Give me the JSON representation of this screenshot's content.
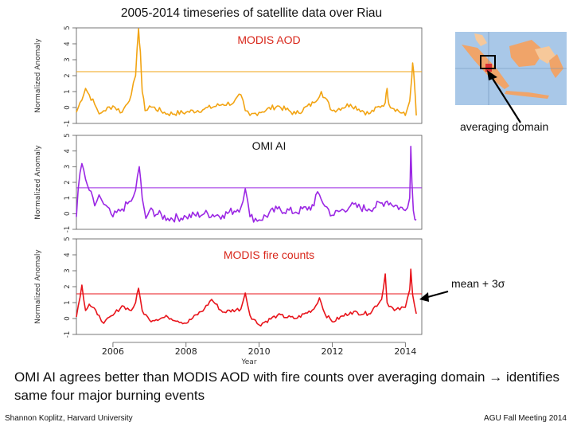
{
  "title": "2005-2014 timeseries of satellite data over Riau",
  "summary": "OMI AI agrees better than MODIS AOD with fire counts over averaging domain → identifies same four major burning events",
  "footer_left": "Shannon Koplitz, Harvard University",
  "footer_right": "AGU Fall Meeting 2014",
  "map_label": "averaging domain",
  "threshold_label": "mean + 3σ",
  "colors": {
    "aod": "#f2a413",
    "ai": "#9b27e4",
    "fire": "#e8141b",
    "aod_label": "#d8261a",
    "ai_label": "#111111",
    "fire_label": "#d8261a",
    "map_sea": "#a9c8e8",
    "map_land": "#f0a469",
    "map_highlight": "#d81b2a"
  },
  "chart_data": [
    {
      "type": "line",
      "series_name": "MODIS AOD",
      "ylabel": "Normalized Anomaly",
      "xlabel": "",
      "ylim": [
        -1,
        5
      ],
      "yticks": [
        "-1",
        "0",
        "1",
        "2",
        "3",
        "4",
        "5"
      ],
      "threshold": 2.25,
      "x": [
        2005.0,
        2005.25,
        2005.5,
        2005.62,
        2005.75,
        2006.0,
        2006.25,
        2006.5,
        2006.62,
        2006.7,
        2006.75,
        2006.8,
        2006.88,
        2007.0,
        2007.5,
        2008.0,
        2008.5,
        2009.0,
        2009.3,
        2009.5,
        2009.62,
        2009.75,
        2010.0,
        2010.5,
        2011.0,
        2011.5,
        2011.7,
        2012.0,
        2012.5,
        2013.0,
        2013.45,
        2013.5,
        2013.55,
        2014.0,
        2014.12,
        2014.15,
        2014.2,
        2014.25,
        2014.3
      ],
      "values": [
        -0.3,
        1.2,
        0.2,
        -0.4,
        -0.2,
        0.1,
        -0.3,
        0.8,
        2.0,
        4.95,
        3.5,
        1.0,
        -0.2,
        0.1,
        -0.4,
        -0.3,
        -0.1,
        0.2,
        0.3,
        0.8,
        -0.2,
        -0.5,
        -0.3,
        0.1,
        -0.4,
        0.3,
        1.0,
        -0.2,
        0.2,
        -0.4,
        0.3,
        1.2,
        0.2,
        -0.5,
        0.4,
        1.2,
        2.8,
        1.5,
        -0.5
      ]
    },
    {
      "type": "line",
      "series_name": "OMI AI",
      "ylabel": "Normalized Anomaly",
      "xlabel": "",
      "ylim": [
        -1,
        5
      ],
      "yticks": [
        "-1",
        "0",
        "1",
        "2",
        "3",
        "4",
        "5"
      ],
      "threshold": 1.65,
      "x": [
        2005.0,
        2005.05,
        2005.15,
        2005.25,
        2005.35,
        2005.5,
        2005.62,
        2005.75,
        2006.0,
        2006.25,
        2006.5,
        2006.62,
        2006.72,
        2006.8,
        2006.9,
        2007.0,
        2007.5,
        2008.0,
        2008.5,
        2009.0,
        2009.5,
        2009.62,
        2009.75,
        2010.0,
        2010.5,
        2011.0,
        2011.5,
        2011.6,
        2011.7,
        2012.0,
        2012.5,
        2013.0,
        2013.5,
        2014.0,
        2014.12,
        2014.15,
        2014.18,
        2014.22,
        2014.3
      ],
      "values": [
        -0.2,
        1.6,
        3.2,
        2.2,
        1.5,
        0.5,
        1.2,
        0.6,
        -0.2,
        0.3,
        0.8,
        1.5,
        3.0,
        1.0,
        -0.3,
        0.2,
        -0.3,
        -0.2,
        0.0,
        -0.1,
        0.4,
        1.6,
        -0.2,
        -0.4,
        0.3,
        0.1,
        0.5,
        1.4,
        0.9,
        -0.1,
        0.5,
        0.3,
        0.8,
        0.2,
        1.0,
        4.3,
        2.0,
        0.2,
        -0.4
      ]
    },
    {
      "type": "line",
      "series_name": "MODIS fire counts",
      "ylabel": "Normalized Anomaly",
      "xlabel": "Year",
      "ylim": [
        -1,
        5
      ],
      "yticks": [
        "-1",
        "0",
        "1",
        "2",
        "3",
        "4",
        "5"
      ],
      "xticks": [
        "2006",
        "2008",
        "2010",
        "2012",
        "2014"
      ],
      "threshold": 1.55,
      "x": [
        2005.0,
        2005.15,
        2005.25,
        2005.35,
        2005.62,
        2005.75,
        2006.0,
        2006.25,
        2006.5,
        2006.62,
        2006.7,
        2006.8,
        2007.0,
        2007.5,
        2008.0,
        2008.5,
        2008.7,
        2009.0,
        2009.5,
        2009.62,
        2009.75,
        2010.0,
        2010.5,
        2011.0,
        2011.5,
        2011.65,
        2011.8,
        2012.0,
        2012.5,
        2013.0,
        2013.35,
        2013.45,
        2013.5,
        2013.7,
        2014.0,
        2014.12,
        2014.15,
        2014.2,
        2014.3
      ],
      "values": [
        0.1,
        2.1,
        0.5,
        0.9,
        0.2,
        -0.3,
        0.2,
        0.8,
        0.5,
        1.0,
        1.9,
        0.5,
        -0.1,
        0.1,
        -0.3,
        0.6,
        1.2,
        0.4,
        0.6,
        1.6,
        0.2,
        -0.4,
        0.2,
        0.0,
        0.6,
        1.3,
        0.3,
        -0.2,
        0.4,
        0.3,
        1.2,
        2.8,
        1.0,
        0.5,
        0.7,
        1.8,
        3.1,
        1.5,
        0.3
      ]
    }
  ]
}
